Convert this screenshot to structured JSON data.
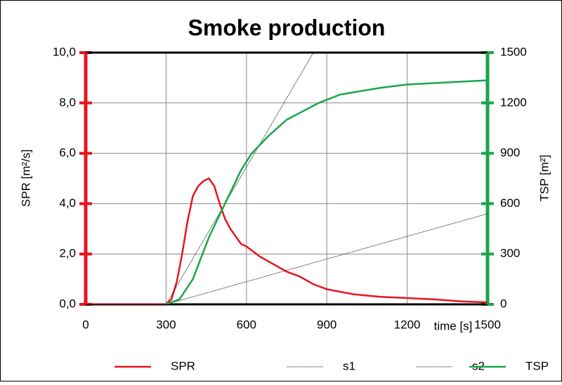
{
  "chart_data": {
    "type": "line",
    "title": "Smoke production",
    "xlabel": "time [s]",
    "ylabel": "SPR [m²/s]",
    "y2label": "TSP [m²]",
    "xlim": [
      0,
      1500
    ],
    "xticks": [
      0,
      300,
      600,
      900,
      1200,
      1500
    ],
    "ylim": [
      0,
      10
    ],
    "yticks": [
      {
        "value": 0,
        "label": "0,0"
      },
      {
        "value": 2,
        "label": "2,0"
      },
      {
        "value": 4,
        "label": "4,0"
      },
      {
        "value": 6,
        "label": "6,0"
      },
      {
        "value": 8,
        "label": "8,0"
      },
      {
        "value": 10,
        "label": "10,0"
      }
    ],
    "y2lim": [
      0,
      1500
    ],
    "y2ticks": [
      0,
      300,
      600,
      900,
      1200,
      1500
    ],
    "grid": true,
    "legend": "bottom",
    "series": [
      {
        "name": "SPR",
        "color": "#e8141e",
        "x": [
          0,
          300,
          320,
          340,
          360,
          380,
          400,
          420,
          440,
          460,
          480,
          500,
          520,
          540,
          560,
          580,
          600,
          650,
          700,
          750,
          800,
          850,
          900,
          1000,
          1100,
          1200,
          1300,
          1400,
          1500
        ],
        "values": [
          0,
          0,
          0.2,
          0.9,
          2.0,
          3.3,
          4.3,
          4.7,
          4.9,
          5.0,
          4.7,
          4.0,
          3.4,
          3.0,
          2.7,
          2.4,
          2.3,
          1.9,
          1.6,
          1.3,
          1.1,
          0.8,
          0.6,
          0.4,
          0.3,
          0.25,
          0.2,
          0.12,
          0.08
        ]
      },
      {
        "name": "s1",
        "color": "#000000",
        "axis": "y2",
        "x": [
          300,
          850
        ],
        "values": [
          0,
          1500
        ]
      },
      {
        "name": "s2",
        "color": "#000000",
        "axis": "y2",
        "x": [
          300,
          1500
        ],
        "values": [
          0,
          540
        ]
      },
      {
        "name": "TSP",
        "color": "#1aa54b",
        "axis": "y2",
        "x": [
          300,
          350,
          400,
          460,
          520,
          580,
          620,
          680,
          750,
          870,
          950,
          1100,
          1200,
          1500
        ],
        "values": [
          0,
          30,
          150,
          400,
          600,
          800,
          900,
          1000,
          1100,
          1200,
          1250,
          1290,
          1310,
          1335
        ]
      }
    ]
  }
}
